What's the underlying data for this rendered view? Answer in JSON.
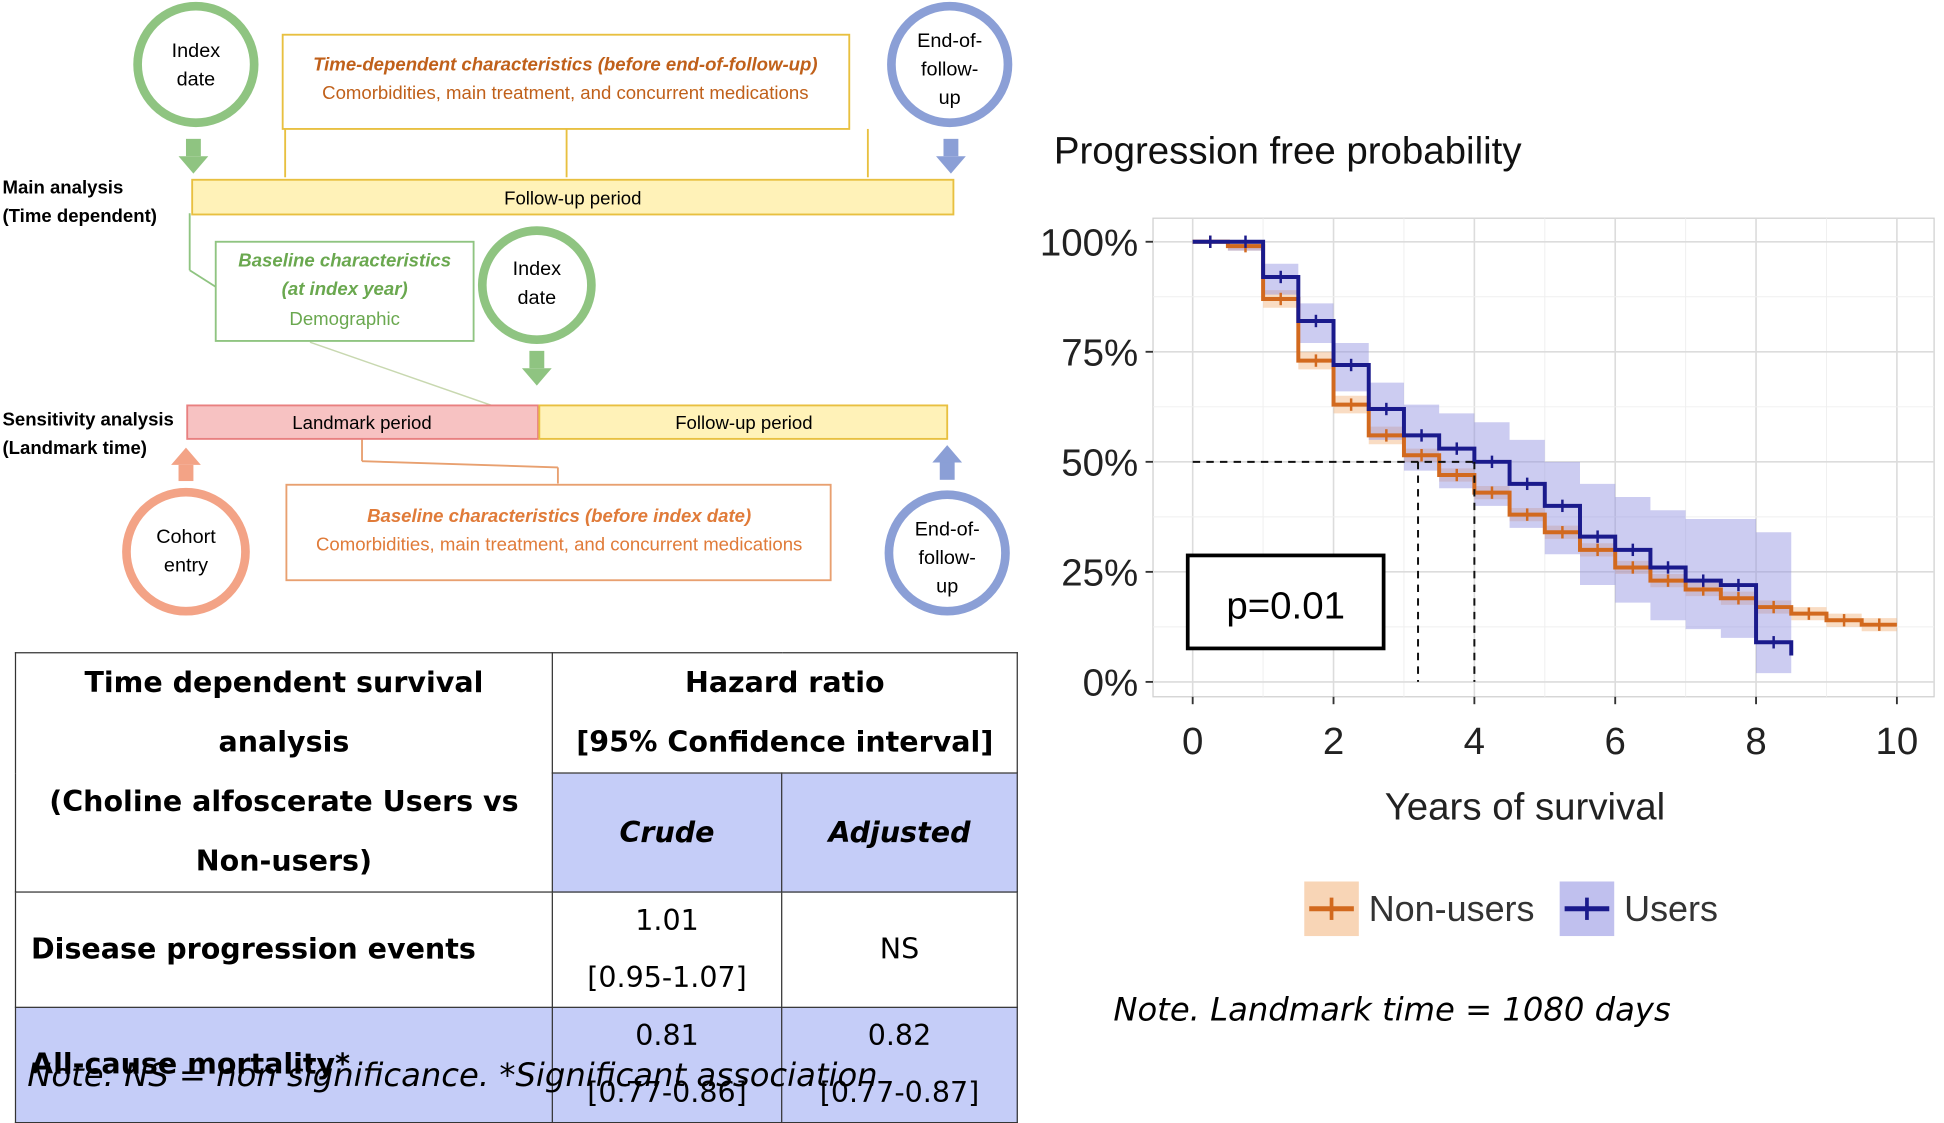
{
  "diagram": {
    "main_analysis": {
      "line1": "Main analysis",
      "line2": "(Time dependent)"
    },
    "sensitivity_analysis": {
      "line1": "Sensitivity analysis",
      "line2": "(Landmark time)"
    },
    "index_date_1": {
      "line1": "Index",
      "line2": "date"
    },
    "end_of_follow_up_1": {
      "line1": "End-of-",
      "line2": "follow-",
      "line3": "up"
    },
    "time_dependent_box": {
      "title": "Time-dependent characteristics (before end-of-follow-up)",
      "body": "Comorbidities, main treatment, and concurrent medications"
    },
    "follow_up_bar_1": "Follow-up period",
    "baseline_index_box": {
      "line1": "Baseline characteristics",
      "line2": "(at index year)",
      "line3": "Demographic"
    },
    "index_date_2": {
      "line1": "Index",
      "line2": "date"
    },
    "landmark_bar": "Landmark period",
    "follow_up_bar_2": "Follow-up period",
    "cohort_entry": {
      "line1": "Cohort",
      "line2": "entry"
    },
    "baseline_before_box": {
      "title": "Baseline characteristics (before index date)",
      "body": "Comorbidities, main treatment, and concurrent medications"
    },
    "end_of_follow_up_2": {
      "line1": "End-of-",
      "line2": "follow-",
      "line3": "up"
    },
    "colors": {
      "green": "#8fc481",
      "blue": "#8b9fd6",
      "orange": "#f3a386",
      "yellow": "#fff2b8",
      "pink": "#f7c2c2"
    }
  },
  "table": {
    "header_left": {
      "line1": "Time dependent survival analysis",
      "line2": "(Choline alfoscerate Users vs",
      "line3": "Non-users)"
    },
    "header_right": {
      "line1": "Hazard ratio",
      "line2": "[95% Confidence interval]"
    },
    "sub_crude": "Crude",
    "sub_adjusted": "Adjusted",
    "rows": [
      {
        "label": "Disease progression events",
        "crude_value": "1.01",
        "crude_ci": "[0.95-1.07]",
        "adjusted": "NS"
      },
      {
        "label": "All-cause mortality*",
        "crude_value": "0.81",
        "crude_ci": "[0.77-0.86]",
        "adjusted_value": "0.82",
        "adjusted_ci": "[0.77-0.87]"
      }
    ],
    "note": "Note. NS = non significance. *Significant association"
  },
  "chart_data": {
    "type": "line",
    "title": "Progression free probability",
    "xlabel": "Years of survival",
    "ylabel": "",
    "xlim": [
      0,
      10
    ],
    "ylim": [
      0,
      1
    ],
    "x_ticks": [
      "0",
      "2",
      "4",
      "6",
      "8",
      "10"
    ],
    "y_ticks": [
      "0%",
      "25%",
      "50%",
      "75%",
      "100%"
    ],
    "grid": true,
    "legend_position": "bottom",
    "annotation": "p=0.01",
    "median_survival": {
      "Non-users": 3.2,
      "Users": 4.0
    },
    "series": [
      {
        "name": "Non-users",
        "color": "#d2691e",
        "x": [
          0,
          0.5,
          1.0,
          1.5,
          2.0,
          2.5,
          3.0,
          3.5,
          4.0,
          4.5,
          5.0,
          5.5,
          6.0,
          6.5,
          7.0,
          7.5,
          8.0,
          8.5,
          9.0,
          9.5,
          10.0
        ],
        "y": [
          1.0,
          0.99,
          0.87,
          0.73,
          0.63,
          0.56,
          0.515,
          0.47,
          0.43,
          0.38,
          0.34,
          0.3,
          0.26,
          0.23,
          0.21,
          0.19,
          0.17,
          0.155,
          0.14,
          0.13,
          0.13
        ],
        "ci_lower": [
          1.0,
          0.98,
          0.85,
          0.71,
          0.61,
          0.54,
          0.5,
          0.455,
          0.415,
          0.365,
          0.325,
          0.285,
          0.245,
          0.215,
          0.195,
          0.175,
          0.155,
          0.14,
          0.125,
          0.115,
          0.115
        ],
        "ci_upper": [
          1.0,
          1.0,
          0.89,
          0.75,
          0.65,
          0.58,
          0.53,
          0.485,
          0.445,
          0.395,
          0.355,
          0.315,
          0.275,
          0.245,
          0.225,
          0.205,
          0.185,
          0.17,
          0.155,
          0.145,
          0.145
        ]
      },
      {
        "name": "Users",
        "color": "#1a1a8c",
        "x": [
          0,
          0.5,
          1.0,
          1.5,
          2.0,
          2.5,
          3.0,
          3.5,
          4.0,
          4.5,
          5.0,
          5.5,
          6.0,
          6.5,
          7.0,
          7.5,
          8.0,
          8.5
        ],
        "y": [
          1.0,
          1.0,
          0.92,
          0.82,
          0.72,
          0.62,
          0.56,
          0.53,
          0.5,
          0.45,
          0.4,
          0.33,
          0.3,
          0.26,
          0.23,
          0.22,
          0.09,
          0.06
        ],
        "ci_lower": [
          1.0,
          0.98,
          0.88,
          0.77,
          0.66,
          0.55,
          0.48,
          0.44,
          0.4,
          0.35,
          0.29,
          0.22,
          0.18,
          0.14,
          0.12,
          0.1,
          0.02,
          0.02
        ],
        "ci_upper": [
          1.0,
          1.0,
          0.95,
          0.86,
          0.77,
          0.68,
          0.63,
          0.61,
          0.59,
          0.55,
          0.5,
          0.45,
          0.42,
          0.39,
          0.37,
          0.37,
          0.34,
          0.34
        ]
      }
    ],
    "note": "Note. Landmark time = 1080 days"
  }
}
